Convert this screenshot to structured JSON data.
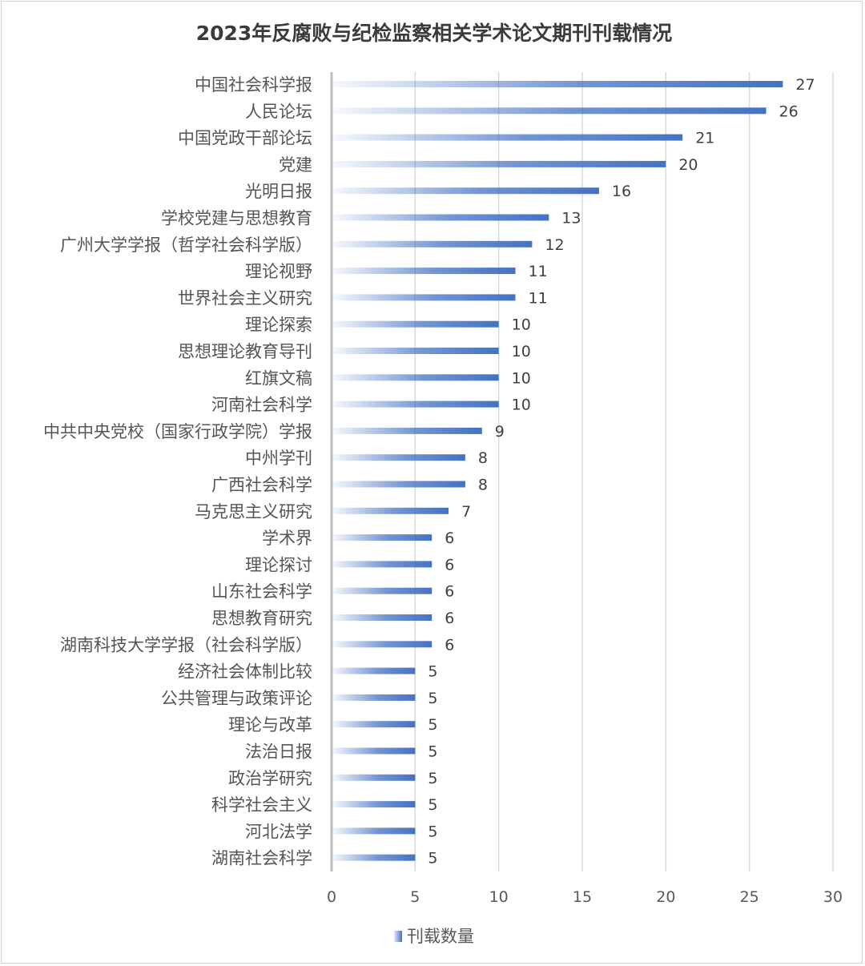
{
  "chart_data": {
    "type": "bar",
    "orientation": "horizontal",
    "title": "2023年反腐败与纪检监察相关学术论文期刊刊载情况",
    "categories": [
      "中国社会科学报",
      "人民论坛",
      "中国党政干部论坛",
      "党建",
      "光明日报",
      "学校党建与思想教育",
      "广州大学学报（哲学社会科学版）",
      "理论视野",
      "世界社会主义研究",
      "理论探索",
      "思想理论教育导刊",
      "红旗文稿",
      "河南社会科学",
      "中共中央党校（国家行政学院）学报",
      "中州学刊",
      "广西社会科学",
      "马克思主义研究",
      "学术界",
      "理论探讨",
      "山东社会科学",
      "思想教育研究",
      "湖南科技大学学报（社会科学版）",
      "经济社会体制比较",
      "公共管理与政策评论",
      "理论与改革",
      "法治日报",
      "政治学研究",
      "科学社会主义",
      "河北法学",
      "湖南社会科学"
    ],
    "series": [
      {
        "name": "刊载数量",
        "values": [
          27,
          26,
          21,
          20,
          16,
          13,
          12,
          11,
          11,
          10,
          10,
          10,
          10,
          9,
          8,
          8,
          7,
          6,
          6,
          6,
          6,
          6,
          5,
          5,
          5,
          5,
          5,
          5,
          5,
          5
        ]
      }
    ],
    "xlim": [
      0,
      30
    ],
    "xticks": [
      0,
      5,
      10,
      15,
      20,
      25,
      30
    ],
    "grid": "vertical",
    "legend_position": "bottom",
    "bar_color": "#4472c4",
    "bar_fill": "gradient from transparent (left) to blue (right)"
  }
}
